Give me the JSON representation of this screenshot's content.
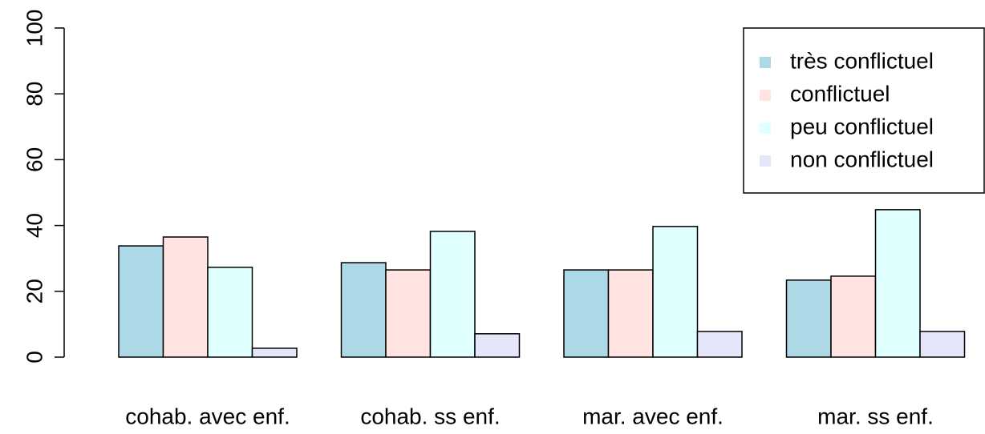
{
  "chart_data": {
    "type": "bar",
    "categories": [
      "cohab. avec enf.",
      "cohab. ss enf.",
      "mar. avec enf.",
      "mar. ss enf."
    ],
    "series": [
      {
        "name": "très conflictuel",
        "color": "#add8e6",
        "values": [
          33.8,
          28.7,
          26.5,
          23.4
        ]
      },
      {
        "name": "conflictuel",
        "color": "#ffe4e1",
        "values": [
          36.5,
          26.5,
          26.5,
          24.6
        ]
      },
      {
        "name": "peu conflictuel",
        "color": "#e0ffff",
        "values": [
          27.3,
          38.2,
          39.7,
          44.8
        ]
      },
      {
        "name": "non conflictuel",
        "color": "#e6e6fa",
        "values": [
          2.7,
          7.1,
          7.8,
          7.8
        ]
      }
    ],
    "ylim": [
      0,
      100
    ],
    "yticks": [
      0,
      20,
      40,
      60,
      80,
      100
    ],
    "legend": "topright"
  }
}
